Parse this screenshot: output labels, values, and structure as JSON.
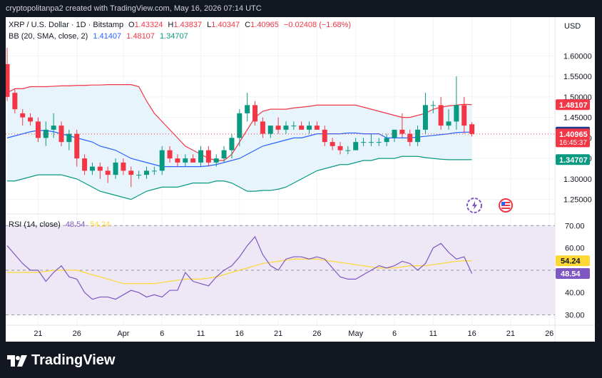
{
  "header": {
    "text": "cryptopolitanpa2 created with TradingView.com, May 16, 2026 07:14 UTC"
  },
  "legend": {
    "symbol": "XRP / U.S. Dollar · 1D · Bitstamp",
    "o_label": "O",
    "o": "1.43324",
    "h_label": "H",
    "h": "1.43837",
    "l_label": "L",
    "l": "1.40347",
    "c_label": "C",
    "c": "1.40965",
    "change": "−0.02408 (−1.68%)",
    "bb_label": "BB (20, SMA, close, 2)",
    "bb_basis": "1.41407",
    "bb_upper": "1.48107",
    "bb_lower": "1.34707",
    "rsi_label": "RSI (14, close)",
    "rsi_value": "48.54",
    "rsi_ma": "54.24"
  },
  "currency": "USD",
  "price_badges": {
    "upper": "1.48107",
    "basis": "1.41407",
    "close": "1.40965",
    "countdown": "16:45:37",
    "lower": "1.34707"
  },
  "rsi_badges": {
    "ma": "54.24",
    "value": "48.54"
  },
  "footer": {
    "brand": "TradingView"
  },
  "colors": {
    "up": "#089981",
    "down": "#f23645",
    "basis": "#2962ff",
    "upper": "#f23645",
    "lower": "#089981",
    "rsi": "#7e57c2",
    "rsi_ma": "#fdd835",
    "band_fill": "#e8f4fc",
    "rsi_fill": "#ede7f6"
  },
  "icons": [
    "gear-bolt-icon",
    "us-flag-icon"
  ],
  "chart_data": [
    {
      "type": "candlestick",
      "title": "XRP / U.S. Dollar · 1D · Bitstamp",
      "y_axis_ticks": [
        "1.60000",
        "1.55000",
        "1.50000",
        "1.45000",
        "1.40000",
        "1.35000",
        "1.30000",
        "1.25000"
      ],
      "ylim": [
        1.225,
        1.625
      ],
      "x_tick_labels": [
        {
          "day": 4,
          "label": "21"
        },
        {
          "day": 9,
          "label": "26"
        },
        {
          "day": 15,
          "label": "Apr"
        },
        {
          "day": 20,
          "label": "6"
        },
        {
          "day": 25,
          "label": "11"
        },
        {
          "day": 30,
          "label": "16"
        },
        {
          "day": 35,
          "label": "21"
        },
        {
          "day": 40,
          "label": "26"
        },
        {
          "day": 45,
          "label": "May"
        },
        {
          "day": 50,
          "label": "6"
        },
        {
          "day": 55,
          "label": "11"
        },
        {
          "day": 60,
          "label": "16"
        },
        {
          "day": 65,
          "label": "21"
        },
        {
          "day": 70,
          "label": "26"
        }
      ],
      "candles": [
        [
          1.58,
          1.62,
          1.49,
          1.5
        ],
        [
          1.51,
          1.52,
          1.46,
          1.47
        ],
        [
          1.46,
          1.47,
          1.43,
          1.45
        ],
        [
          1.45,
          1.46,
          1.43,
          1.44
        ],
        [
          1.44,
          1.45,
          1.39,
          1.4
        ],
        [
          1.4,
          1.44,
          1.38,
          1.42
        ],
        [
          1.42,
          1.46,
          1.4,
          1.43
        ],
        [
          1.43,
          1.44,
          1.38,
          1.39
        ],
        [
          1.39,
          1.42,
          1.37,
          1.41
        ],
        [
          1.41,
          1.42,
          1.33,
          1.35
        ],
        [
          1.35,
          1.36,
          1.31,
          1.32
        ],
        [
          1.32,
          1.34,
          1.31,
          1.33
        ],
        [
          1.33,
          1.34,
          1.3,
          1.32
        ],
        [
          1.32,
          1.33,
          1.29,
          1.31
        ],
        [
          1.31,
          1.35,
          1.3,
          1.34
        ],
        [
          1.34,
          1.35,
          1.31,
          1.32
        ],
        [
          1.32,
          1.33,
          1.28,
          1.31
        ],
        [
          1.31,
          1.32,
          1.3,
          1.31
        ],
        [
          1.31,
          1.33,
          1.3,
          1.32
        ],
        [
          1.32,
          1.33,
          1.31,
          1.32
        ],
        [
          1.32,
          1.38,
          1.31,
          1.37
        ],
        [
          1.37,
          1.38,
          1.34,
          1.35
        ],
        [
          1.35,
          1.36,
          1.33,
          1.34
        ],
        [
          1.34,
          1.36,
          1.33,
          1.35
        ],
        [
          1.35,
          1.36,
          1.34,
          1.34
        ],
        [
          1.34,
          1.38,
          1.33,
          1.37
        ],
        [
          1.37,
          1.38,
          1.33,
          1.34
        ],
        [
          1.34,
          1.36,
          1.33,
          1.35
        ],
        [
          1.35,
          1.38,
          1.34,
          1.37
        ],
        [
          1.37,
          1.41,
          1.35,
          1.4
        ],
        [
          1.4,
          1.47,
          1.38,
          1.46
        ],
        [
          1.46,
          1.51,
          1.44,
          1.48
        ],
        [
          1.48,
          1.49,
          1.43,
          1.44
        ],
        [
          1.44,
          1.45,
          1.4,
          1.41
        ],
        [
          1.41,
          1.43,
          1.4,
          1.43
        ],
        [
          1.43,
          1.45,
          1.41,
          1.42
        ],
        [
          1.42,
          1.44,
          1.41,
          1.43
        ],
        [
          1.43,
          1.44,
          1.42,
          1.43
        ],
        [
          1.43,
          1.44,
          1.42,
          1.42
        ],
        [
          1.42,
          1.44,
          1.41,
          1.43
        ],
        [
          1.43,
          1.44,
          1.42,
          1.42
        ],
        [
          1.42,
          1.43,
          1.38,
          1.39
        ],
        [
          1.39,
          1.4,
          1.37,
          1.38
        ],
        [
          1.38,
          1.39,
          1.36,
          1.37
        ],
        [
          1.37,
          1.38,
          1.36,
          1.37
        ],
        [
          1.37,
          1.4,
          1.37,
          1.39
        ],
        [
          1.39,
          1.4,
          1.38,
          1.39
        ],
        [
          1.39,
          1.41,
          1.38,
          1.39
        ],
        [
          1.39,
          1.4,
          1.38,
          1.39
        ],
        [
          1.39,
          1.41,
          1.38,
          1.4
        ],
        [
          1.4,
          1.42,
          1.39,
          1.42
        ],
        [
          1.42,
          1.46,
          1.4,
          1.41
        ],
        [
          1.41,
          1.42,
          1.38,
          1.39
        ],
        [
          1.39,
          1.43,
          1.38,
          1.42
        ],
        [
          1.42,
          1.51,
          1.41,
          1.48
        ],
        [
          1.48,
          1.49,
          1.46,
          1.48
        ],
        [
          1.48,
          1.5,
          1.42,
          1.43
        ],
        [
          1.43,
          1.47,
          1.42,
          1.44
        ],
        [
          1.44,
          1.55,
          1.42,
          1.48
        ],
        [
          1.48,
          1.5,
          1.41,
          1.43
        ],
        [
          1.43324,
          1.43837,
          1.40347,
          1.40965
        ]
      ],
      "bb_upper": [
        1.51,
        1.52,
        1.52,
        1.525,
        1.525,
        1.525,
        1.526,
        1.527,
        1.527,
        1.528,
        1.528,
        1.529,
        1.529,
        1.53,
        1.53,
        1.53,
        1.53,
        1.525,
        1.49,
        1.46,
        1.44,
        1.42,
        1.4,
        1.38,
        1.37,
        1.36,
        1.35,
        1.345,
        1.345,
        1.36,
        1.39,
        1.42,
        1.45,
        1.465,
        1.47,
        1.47,
        1.47,
        1.473,
        1.475,
        1.477,
        1.48,
        1.48,
        1.48,
        1.48,
        1.48,
        1.48,
        1.475,
        1.47,
        1.465,
        1.46,
        1.455,
        1.45,
        1.45,
        1.455,
        1.46,
        1.47,
        1.475,
        1.478,
        1.48,
        1.482,
        1.48107
      ],
      "bb_basis": [
        1.4,
        1.405,
        1.41,
        1.415,
        1.418,
        1.418,
        1.415,
        1.41,
        1.405,
        1.4,
        1.395,
        1.39,
        1.38,
        1.375,
        1.37,
        1.36,
        1.35,
        1.345,
        1.34,
        1.335,
        1.33,
        1.33,
        1.33,
        1.33,
        1.33,
        1.33,
        1.332,
        1.335,
        1.34,
        1.345,
        1.35,
        1.36,
        1.37,
        1.38,
        1.385,
        1.39,
        1.395,
        1.4,
        1.4,
        1.405,
        1.41,
        1.41,
        1.41,
        1.41,
        1.412,
        1.412,
        1.41,
        1.41,
        1.41,
        1.4,
        1.4,
        1.4,
        1.4,
        1.402,
        1.404,
        1.406,
        1.408,
        1.41,
        1.413,
        1.414,
        1.41407
      ],
      "bb_lower": [
        1.295,
        1.295,
        1.3,
        1.305,
        1.31,
        1.31,
        1.31,
        1.31,
        1.305,
        1.3,
        1.29,
        1.28,
        1.27,
        1.265,
        1.26,
        1.255,
        1.25,
        1.26,
        1.27,
        1.275,
        1.28,
        1.28,
        1.28,
        1.285,
        1.29,
        1.29,
        1.29,
        1.295,
        1.295,
        1.29,
        1.28,
        1.27,
        1.27,
        1.272,
        1.272,
        1.275,
        1.28,
        1.29,
        1.3,
        1.31,
        1.32,
        1.325,
        1.33,
        1.335,
        1.335,
        1.34,
        1.345,
        1.345,
        1.35,
        1.35,
        1.35,
        1.355,
        1.355,
        1.355,
        1.352,
        1.35,
        1.348,
        1.347,
        1.347,
        1.347,
        1.34707
      ]
    },
    {
      "type": "line",
      "title": "RSI (14, close)",
      "y_axis_ticks": [
        "70.00",
        "60.00",
        "40.00",
        "30.00"
      ],
      "levels": [
        70,
        50,
        30
      ],
      "ylim": [
        26,
        72
      ],
      "series": [
        {
          "name": "RSI (14, close)",
          "color": "#7e57c2",
          "values": [
            61,
            57,
            53,
            50,
            50,
            45,
            49,
            52,
            47,
            46,
            40,
            37,
            38,
            38,
            37,
            39,
            41,
            40,
            38,
            39,
            38,
            41,
            41,
            49,
            45,
            44,
            43,
            47,
            50,
            52,
            56,
            61,
            65,
            57,
            52,
            50,
            55,
            56,
            56,
            55,
            56,
            55,
            51,
            47,
            46,
            46,
            48,
            50,
            52,
            51,
            52,
            54,
            53,
            50,
            53,
            60,
            62,
            58,
            55,
            56,
            48.54
          ]
        },
        {
          "name": "",
          "color": "#fdd835",
          "values": [
            49,
            49,
            49,
            49,
            49,
            49.5,
            50,
            50,
            50,
            50,
            49,
            48,
            47,
            46,
            45,
            44,
            44,
            44,
            44,
            44,
            44.5,
            45,
            45.5,
            46,
            46,
            46,
            46.5,
            47,
            48,
            49,
            50,
            51,
            52,
            53,
            53.5,
            54,
            54.5,
            55,
            55,
            55,
            55,
            54.5,
            54,
            53.5,
            53,
            52.5,
            52,
            51.5,
            51,
            51,
            51,
            51.5,
            52,
            52,
            52,
            52.5,
            53,
            53.5,
            54,
            54.2,
            54.24
          ]
        }
      ]
    }
  ]
}
